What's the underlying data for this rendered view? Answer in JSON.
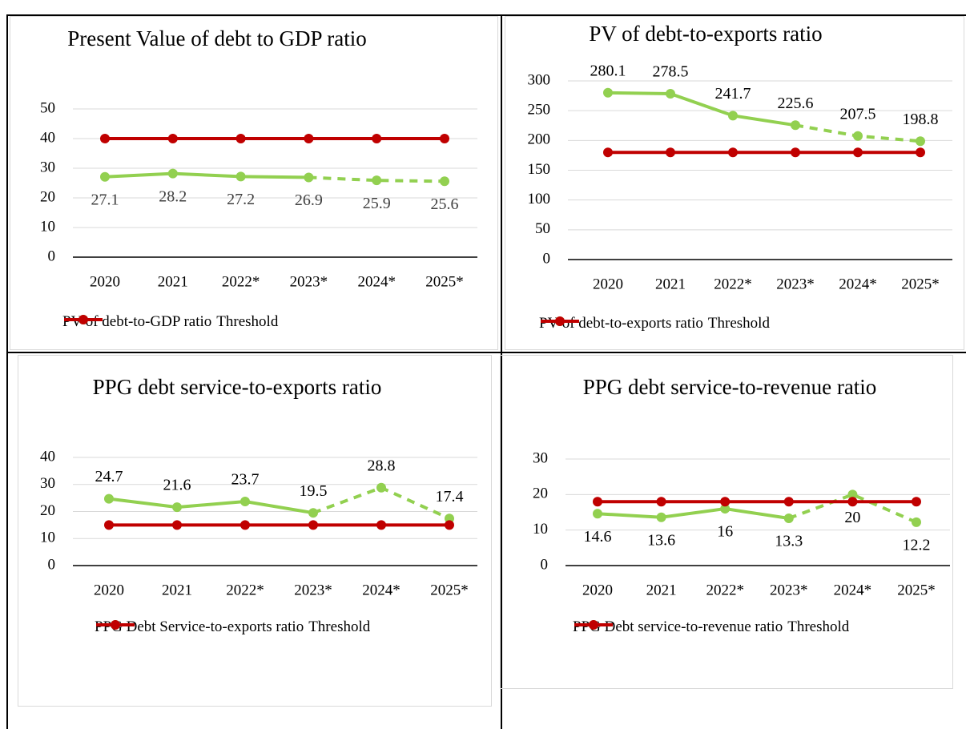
{
  "chart_data": [
    {
      "type": "line",
      "title": "Present Value of debt to GDP ratio",
      "categories": [
        "2020",
        "2021",
        "2022*",
        "2023*",
        "2024*",
        "2025*"
      ],
      "series": [
        {
          "name": "PV of debt-to-GDP ratio",
          "color": "#92d050",
          "values": [
            27.1,
            28.2,
            27.2,
            26.9,
            25.9,
            25.6
          ],
          "dash_from_index": 3,
          "label_position": "below"
        },
        {
          "name": "Threshold",
          "color": "#c00000",
          "values": [
            40,
            40,
            40,
            40,
            40,
            40
          ]
        }
      ],
      "ylim": [
        0,
        50
      ],
      "yticks": [
        0,
        10,
        20,
        30,
        40,
        50
      ],
      "grid": true
    },
    {
      "type": "line",
      "title": "PV of debt-to-exports ratio",
      "categories": [
        "2020",
        "2021",
        "2022*",
        "2023*",
        "2024*",
        "2025*"
      ],
      "series": [
        {
          "name": "PV of debt-to-exports ratio",
          "color": "#92d050",
          "values": [
            280.1,
            278.5,
            241.7,
            225.6,
            207.5,
            198.8
          ],
          "dash_from_index": 3,
          "label_position": "above"
        },
        {
          "name": "Threshold",
          "color": "#c00000",
          "values": [
            180,
            180,
            180,
            180,
            180,
            180
          ]
        }
      ],
      "ylim": [
        0,
        300
      ],
      "yticks": [
        0,
        50,
        100,
        150,
        200,
        250,
        300
      ],
      "grid": true
    },
    {
      "type": "line",
      "title": "PPG debt service-to-exports ratio",
      "categories": [
        "2020",
        "2021",
        "2022*",
        "2023*",
        "2024*",
        "2025*"
      ],
      "series": [
        {
          "name": "PPG Debt Service-to-exports ratio",
          "color": "#92d050",
          "values": [
            24.7,
            21.6,
            23.7,
            19.5,
            28.8,
            17.4
          ],
          "dash_from_index": 3,
          "label_position": "above"
        },
        {
          "name": "Threshold",
          "color": "#c00000",
          "values": [
            15,
            15,
            15,
            15,
            15,
            15
          ]
        }
      ],
      "ylim": [
        0,
        40
      ],
      "yticks": [
        0,
        10,
        20,
        30,
        40
      ],
      "grid": true
    },
    {
      "type": "line",
      "title": "PPG debt service-to-revenue ratio",
      "categories": [
        "2020",
        "2021",
        "2022*",
        "2023*",
        "2024*",
        "2025*"
      ],
      "series": [
        {
          "name": "PPG Debt service-to-revenue ratio",
          "color": "#92d050",
          "values": [
            14.6,
            13.6,
            16,
            13.3,
            20,
            12.2
          ],
          "dash_from_index": 3,
          "label_position": "below"
        },
        {
          "name": "Threshold",
          "color": "#c00000",
          "values": [
            18,
            18,
            18,
            18,
            18,
            18
          ]
        }
      ],
      "ylim": [
        0,
        30
      ],
      "yticks": [
        0,
        10,
        20,
        30
      ],
      "grid": true
    }
  ]
}
